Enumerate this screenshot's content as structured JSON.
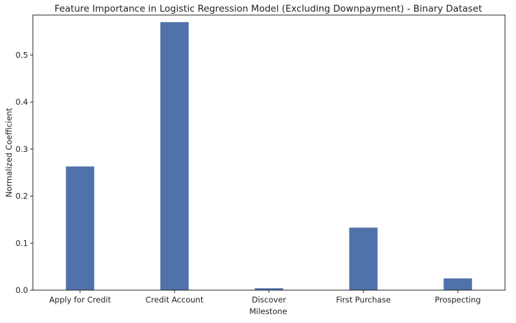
{
  "chart_data": {
    "type": "bar",
    "title": "Feature Importance in Logistic Regression Model (Excluding Downpayment)  - Binary Dataset",
    "xlabel": "Milestone",
    "ylabel": "Normalized Coefficient",
    "categories": [
      "Apply for Credit",
      "Credit Account",
      "Discover",
      "First Purchase",
      "Prospecting"
    ],
    "values": [
      0.263,
      0.57,
      0.004,
      0.133,
      0.025
    ],
    "ylim": [
      0,
      0.585
    ],
    "yticks": [
      "0.0",
      "0.1",
      "0.2",
      "0.3",
      "0.4",
      "0.5"
    ],
    "grid": false,
    "bar_color": "#4f72aa"
  }
}
